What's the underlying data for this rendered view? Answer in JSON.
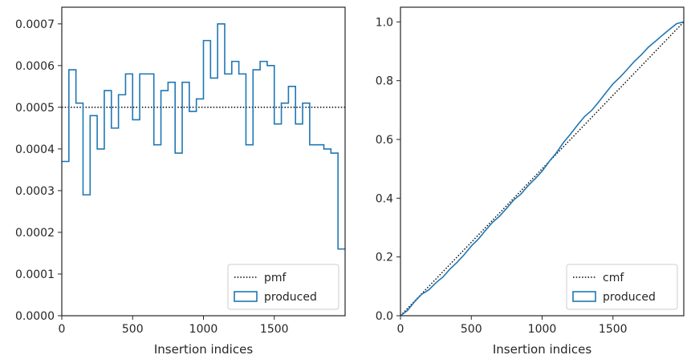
{
  "chart_data": [
    {
      "type": "step",
      "xlabel": "Insertion indices",
      "ylabel": "",
      "xlim": [
        0,
        2000
      ],
      "ylim": [
        0,
        0.00074
      ],
      "xticks": [
        0,
        500,
        1000,
        1500
      ],
      "xtick_labels": [
        "0",
        "500",
        "1000",
        "1500"
      ],
      "yticks": [
        0,
        0.0001,
        0.0002,
        0.0003,
        0.0004,
        0.0005,
        0.0006,
        0.0007
      ],
      "ytick_labels": [
        "0.0000",
        "0.0001",
        "0.0002",
        "0.0003",
        "0.0004",
        "0.0005",
        "0.0006",
        "0.0007"
      ],
      "grid": false,
      "legend_position": "lower-right",
      "series": [
        {
          "name": "pmf",
          "style": "dotted",
          "color": "#000000",
          "x": [
            0,
            2000
          ],
          "y": [
            0.0005,
            0.0005
          ]
        },
        {
          "name": "produced",
          "style": "step",
          "color": "#1f77b4",
          "bin_edges": [
            0,
            50,
            100,
            150,
            200,
            250,
            300,
            350,
            400,
            450,
            500,
            550,
            600,
            650,
            700,
            750,
            800,
            850,
            900,
            950,
            1000,
            1050,
            1100,
            1150,
            1200,
            1250,
            1300,
            1350,
            1400,
            1450,
            1500,
            1550,
            1600,
            1650,
            1700,
            1750,
            1800,
            1850,
            1900,
            1950,
            2000
          ],
          "values": [
            0.00037,
            0.00059,
            0.00051,
            0.00029,
            0.00048,
            0.0004,
            0.00054,
            0.00045,
            0.00053,
            0.00058,
            0.00047,
            0.00058,
            0.00058,
            0.00041,
            0.00054,
            0.00056,
            0.00039,
            0.00056,
            0.00049,
            0.00052,
            0.00066,
            0.00057,
            0.0007,
            0.00058,
            0.00061,
            0.00058,
            0.00041,
            0.00059,
            0.00061,
            0.0006,
            0.00046,
            0.00051,
            0.00055,
            0.00046,
            0.00051,
            0.00041,
            0.00041,
            0.0004,
            0.00039,
            0.00016
          ]
        }
      ]
    },
    {
      "type": "step",
      "xlabel": "Insertion indices",
      "ylabel": "",
      "xlim": [
        0,
        2000
      ],
      "ylim": [
        0,
        1.05
      ],
      "xticks": [
        0,
        500,
        1000,
        1500
      ],
      "xtick_labels": [
        "0",
        "500",
        "1000",
        "1500"
      ],
      "yticks": [
        0,
        0.2,
        0.4,
        0.6,
        0.8,
        1.0
      ],
      "ytick_labels": [
        "0.0",
        "0.2",
        "0.4",
        "0.6",
        "0.8",
        "1.0"
      ],
      "grid": false,
      "legend_position": "lower-right",
      "series": [
        {
          "name": "cmf",
          "style": "dotted",
          "color": "#000000",
          "x": [
            0,
            2000
          ],
          "y": [
            0,
            1
          ]
        },
        {
          "name": "produced",
          "style": "line",
          "color": "#1f77b4",
          "x": [
            0,
            50,
            100,
            150,
            200,
            250,
            300,
            350,
            400,
            450,
            500,
            550,
            600,
            650,
            700,
            750,
            800,
            850,
            900,
            950,
            1000,
            1050,
            1100,
            1150,
            1200,
            1250,
            1300,
            1350,
            1400,
            1450,
            1500,
            1550,
            1600,
            1650,
            1700,
            1750,
            1800,
            1850,
            1900,
            1950,
            2000
          ],
          "y": [
            0,
            0.018,
            0.048,
            0.073,
            0.088,
            0.112,
            0.132,
            0.159,
            0.182,
            0.208,
            0.237,
            0.261,
            0.29,
            0.318,
            0.339,
            0.366,
            0.394,
            0.414,
            0.442,
            0.466,
            0.492,
            0.525,
            0.554,
            0.589,
            0.618,
            0.649,
            0.678,
            0.699,
            0.728,
            0.759,
            0.789,
            0.812,
            0.838,
            0.865,
            0.888,
            0.914,
            0.934,
            0.955,
            0.975,
            0.994,
            1.0
          ]
        }
      ]
    }
  ]
}
